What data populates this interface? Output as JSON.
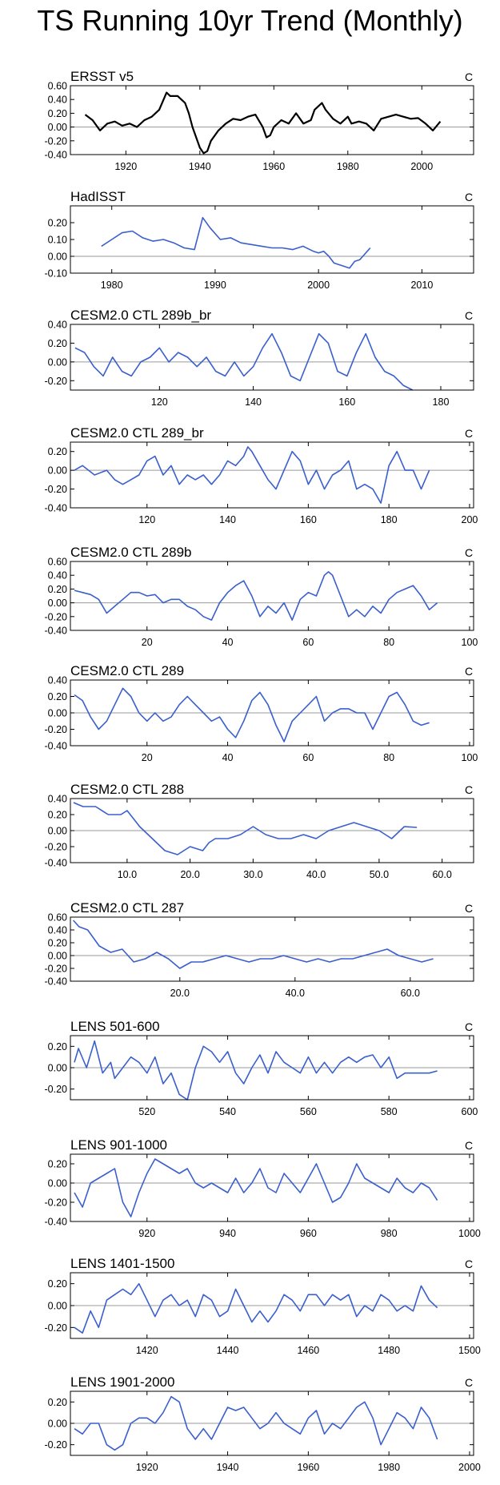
{
  "page": {
    "title": "TS Running 10yr Trend (Monthly)"
  },
  "chart_data": [
    {
      "type": "line",
      "title": "ERSST v5",
      "unit": "C",
      "color": "#000000",
      "xlim": [
        1905,
        2014
      ],
      "ylim": [
        -0.4,
        0.6
      ],
      "xticks": [
        1920,
        1940,
        1960,
        1980,
        2000
      ],
      "yticks": [
        -0.4,
        -0.2,
        0.0,
        0.2,
        0.4,
        0.6
      ],
      "ydec": 2,
      "x": [
        1909,
        1911,
        1913,
        1915,
        1917,
        1919,
        1921,
        1923,
        1925,
        1927,
        1929,
        1931,
        1932,
        1934,
        1936,
        1937,
        1938,
        1939,
        1940,
        1941,
        1942,
        1943,
        1945,
        1947,
        1949,
        1951,
        1953,
        1955,
        1957,
        1958,
        1959,
        1960,
        1962,
        1964,
        1966,
        1968,
        1970,
        1971,
        1973,
        1974,
        1976,
        1978,
        1980,
        1981,
        1983,
        1985,
        1987,
        1989,
        1991,
        1993,
        1995,
        1997,
        1999,
        2001,
        2003,
        2005
      ],
      "y": [
        0.18,
        0.1,
        -0.05,
        0.05,
        0.08,
        0.02,
        0.05,
        0.0,
        0.1,
        0.15,
        0.25,
        0.5,
        0.45,
        0.45,
        0.35,
        0.2,
        0.0,
        -0.15,
        -0.3,
        -0.38,
        -0.35,
        -0.2,
        -0.05,
        0.05,
        0.12,
        0.1,
        0.15,
        0.18,
        0.0,
        -0.15,
        -0.12,
        0.0,
        0.1,
        0.05,
        0.2,
        0.05,
        0.1,
        0.25,
        0.35,
        0.25,
        0.12,
        0.05,
        0.15,
        0.05,
        0.08,
        0.05,
        -0.05,
        0.12,
        0.15,
        0.18,
        0.15,
        0.12,
        0.13,
        0.05,
        -0.05,
        0.08
      ]
    },
    {
      "type": "line",
      "title": "HadISST",
      "unit": "C",
      "color": "#3a5fcd",
      "xlim": [
        1976,
        2015
      ],
      "ylim": [
        -0.1,
        0.3
      ],
      "xticks": [
        1980,
        1990,
        2000,
        2010
      ],
      "yticks": [
        -0.1,
        0.0,
        0.1,
        0.2
      ],
      "ydec": 2,
      "x": [
        1979,
        1980,
        1981,
        1982,
        1983,
        1984,
        1985,
        1986,
        1987,
        1988,
        1988.8,
        1989.5,
        1990.5,
        1991.5,
        1992.5,
        1993.5,
        1994.5,
        1995.5,
        1996.5,
        1997.5,
        1998.5,
        1999.5,
        2000,
        2000.5,
        2001,
        2001.5,
        2002,
        2002.5,
        2003,
        2003.5,
        2004,
        2005
      ],
      "y": [
        0.06,
        0.1,
        0.14,
        0.15,
        0.11,
        0.09,
        0.1,
        0.08,
        0.05,
        0.04,
        0.23,
        0.17,
        0.1,
        0.11,
        0.08,
        0.07,
        0.06,
        0.05,
        0.05,
        0.04,
        0.06,
        0.03,
        0.02,
        0.03,
        0.0,
        -0.04,
        -0.05,
        -0.06,
        -0.07,
        -0.03,
        -0.02,
        0.05
      ]
    },
    {
      "type": "line",
      "title": "CESM2.0 CTL 289b_br",
      "unit": "C",
      "color": "#3a5fcd",
      "xlim": [
        101,
        187
      ],
      "ylim": [
        -0.3,
        0.4
      ],
      "xticks": [
        120,
        140,
        160,
        180
      ],
      "yticks": [
        -0.2,
        0.0,
        0.2,
        0.4
      ],
      "ydec": 2,
      "x": [
        102,
        104,
        106,
        108,
        110,
        112,
        114,
        116,
        118,
        120,
        122,
        124,
        126,
        128,
        130,
        132,
        134,
        136,
        138,
        140,
        142,
        144,
        146,
        148,
        150,
        152,
        154,
        156,
        158,
        160,
        162,
        164,
        166,
        168,
        170,
        172,
        174
      ],
      "y": [
        0.15,
        0.1,
        -0.05,
        -0.15,
        0.05,
        -0.1,
        -0.15,
        0.0,
        0.05,
        0.15,
        0.0,
        0.1,
        0.05,
        -0.05,
        0.05,
        -0.1,
        -0.15,
        0.0,
        -0.15,
        -0.05,
        0.15,
        0.3,
        0.1,
        -0.15,
        -0.2,
        0.05,
        0.3,
        0.2,
        -0.1,
        -0.15,
        0.1,
        0.3,
        0.05,
        -0.1,
        -0.15,
        -0.25,
        -0.3
      ]
    },
    {
      "type": "line",
      "title": "CESM2.0 CTL 289_br",
      "unit": "C",
      "color": "#3a5fcd",
      "xlim": [
        101,
        201
      ],
      "ylim": [
        -0.4,
        0.3
      ],
      "xticks": [
        120,
        140,
        160,
        180,
        200
      ],
      "yticks": [
        -0.4,
        -0.2,
        0.0,
        0.2
      ],
      "ydec": 2,
      "x": [
        102,
        104,
        107,
        110,
        112,
        114,
        116,
        118,
        120,
        122,
        124,
        126,
        128,
        130,
        132,
        134,
        136,
        138,
        140,
        142,
        143,
        144,
        145,
        146,
        148,
        150,
        152,
        154,
        156,
        158,
        160,
        162,
        164,
        166,
        168,
        170,
        172,
        174,
        176,
        178,
        180,
        182,
        184,
        186,
        188,
        190
      ],
      "y": [
        0.0,
        0.05,
        -0.05,
        0.0,
        -0.1,
        -0.15,
        -0.1,
        -0.05,
        0.1,
        0.15,
        -0.05,
        0.05,
        -0.15,
        -0.05,
        -0.1,
        -0.05,
        -0.15,
        -0.05,
        0.1,
        0.05,
        0.1,
        0.15,
        0.25,
        0.2,
        0.05,
        -0.1,
        -0.2,
        0.0,
        0.2,
        0.1,
        -0.15,
        0.0,
        -0.2,
        -0.05,
        0.0,
        0.1,
        -0.2,
        -0.15,
        -0.2,
        -0.35,
        0.05,
        0.2,
        0.0,
        0.0,
        -0.2,
        0.0
      ]
    },
    {
      "type": "line",
      "title": "CESM2.0 CTL 289b",
      "unit": "C",
      "color": "#3a5fcd",
      "xlim": [
        1,
        101
      ],
      "ylim": [
        -0.4,
        0.6
      ],
      "xticks": [
        20,
        40,
        60,
        80,
        100
      ],
      "yticks": [
        -0.4,
        -0.2,
        0.0,
        0.2,
        0.4,
        0.6
      ],
      "ydec": 2,
      "x": [
        2,
        4,
        6,
        8,
        10,
        12,
        14,
        16,
        18,
        20,
        22,
        24,
        26,
        28,
        30,
        32,
        34,
        36,
        38,
        40,
        42,
        44,
        46,
        48,
        50,
        52,
        54,
        56,
        58,
        60,
        62,
        64,
        65,
        66,
        68,
        70,
        72,
        74,
        76,
        78,
        80,
        82,
        84,
        86,
        88,
        90,
        92
      ],
      "y": [
        0.18,
        0.15,
        0.12,
        0.05,
        -0.15,
        -0.05,
        0.05,
        0.15,
        0.15,
        0.1,
        0.12,
        0.0,
        0.05,
        0.05,
        -0.05,
        -0.1,
        -0.2,
        -0.25,
        0.0,
        0.15,
        0.25,
        0.32,
        0.1,
        -0.2,
        -0.05,
        -0.15,
        0.0,
        -0.25,
        0.05,
        0.15,
        0.1,
        0.4,
        0.45,
        0.4,
        0.1,
        -0.2,
        -0.1,
        -0.2,
        -0.05,
        -0.15,
        0.05,
        0.15,
        0.2,
        0.25,
        0.1,
        -0.1,
        0.0
      ]
    },
    {
      "type": "line",
      "title": "CESM2.0 CTL 289",
      "unit": "C",
      "color": "#3a5fcd",
      "xlim": [
        1,
        101
      ],
      "ylim": [
        -0.4,
        0.4
      ],
      "xticks": [
        20,
        40,
        60,
        80,
        100
      ],
      "yticks": [
        -0.4,
        -0.2,
        0.0,
        0.2,
        0.4
      ],
      "ydec": 2,
      "x": [
        2,
        4,
        6,
        8,
        10,
        12,
        14,
        16,
        18,
        20,
        22,
        24,
        26,
        28,
        30,
        32,
        34,
        36,
        38,
        40,
        42,
        44,
        46,
        48,
        50,
        52,
        54,
        56,
        58,
        60,
        62,
        64,
        66,
        68,
        70,
        72,
        74,
        76,
        78,
        80,
        82,
        84,
        86,
        88,
        90
      ],
      "y": [
        0.22,
        0.15,
        -0.05,
        -0.2,
        -0.1,
        0.1,
        0.3,
        0.2,
        0.0,
        -0.1,
        0.0,
        -0.1,
        -0.05,
        0.1,
        0.2,
        0.1,
        0.0,
        -0.1,
        -0.05,
        -0.2,
        -0.3,
        -0.1,
        0.15,
        0.25,
        0.1,
        -0.15,
        -0.35,
        -0.1,
        0.0,
        0.1,
        0.2,
        -0.1,
        0.0,
        0.05,
        0.05,
        0.0,
        0.0,
        -0.2,
        0.0,
        0.2,
        0.25,
        0.1,
        -0.1,
        -0.15,
        -0.12
      ]
    },
    {
      "type": "line",
      "title": "CESM2.0 CTL 288",
      "unit": "C",
      "color": "#3a5fcd",
      "xlim": [
        1,
        65
      ],
      "ylim": [
        -0.4,
        0.4
      ],
      "xticks": [
        10,
        20,
        30,
        40,
        50,
        60
      ],
      "yticks": [
        -0.4,
        -0.2,
        0.0,
        0.2,
        0.4
      ],
      "ydec": 2,
      "xdec": 1,
      "x": [
        1.5,
        3,
        5,
        7,
        9,
        10,
        12,
        14,
        16,
        18,
        19,
        20,
        22,
        23,
        24,
        26,
        28,
        30,
        32,
        34,
        36,
        38,
        40,
        42,
        44,
        46,
        48,
        50,
        52,
        54,
        56
      ],
      "y": [
        0.35,
        0.3,
        0.3,
        0.2,
        0.2,
        0.25,
        0.05,
        -0.1,
        -0.25,
        -0.3,
        -0.25,
        -0.2,
        -0.25,
        -0.15,
        -0.1,
        -0.1,
        -0.05,
        0.05,
        -0.05,
        -0.1,
        -0.1,
        -0.05,
        -0.1,
        0.0,
        0.05,
        0.1,
        0.05,
        0.0,
        -0.1,
        0.05,
        0.04
      ]
    },
    {
      "type": "line",
      "title": "CESM2.0 CTL 287",
      "unit": "C",
      "color": "#3a5fcd",
      "xlim": [
        1,
        71
      ],
      "ylim": [
        -0.4,
        0.6
      ],
      "xticks": [
        20,
        40,
        60
      ],
      "yticks": [
        -0.4,
        -0.2,
        0.0,
        0.2,
        0.4,
        0.6
      ],
      "ydec": 2,
      "xdec": 1,
      "x": [
        1.5,
        2.5,
        4,
        6,
        8,
        10,
        12,
        14,
        16,
        18,
        20,
        22,
        24,
        26,
        28,
        30,
        32,
        34,
        36,
        38,
        40,
        42,
        44,
        46,
        48,
        50,
        52,
        54,
        56,
        58,
        60,
        62,
        64
      ],
      "y": [
        0.55,
        0.45,
        0.4,
        0.15,
        0.05,
        0.1,
        -0.1,
        -0.05,
        0.05,
        -0.05,
        -0.2,
        -0.1,
        -0.1,
        -0.05,
        0.0,
        -0.05,
        -0.1,
        -0.05,
        -0.05,
        0.0,
        -0.05,
        -0.1,
        -0.05,
        -0.1,
        -0.05,
        -0.05,
        0.0,
        0.05,
        0.1,
        0.0,
        -0.05,
        -0.1,
        -0.05
      ]
    },
    {
      "type": "line",
      "title": "LENS 501-600",
      "unit": "C",
      "color": "#3a5fcd",
      "xlim": [
        501,
        601
      ],
      "ylim": [
        -0.3,
        0.3
      ],
      "xticks": [
        520,
        540,
        560,
        580,
        600
      ],
      "yticks": [
        -0.2,
        0.0,
        0.2
      ],
      "ydec": 2,
      "x": [
        502,
        503,
        505,
        507,
        509,
        511,
        512,
        514,
        516,
        518,
        520,
        522,
        524,
        526,
        528,
        530,
        532,
        534,
        536,
        538,
        540,
        542,
        544,
        546,
        548,
        550,
        552,
        554,
        556,
        558,
        560,
        562,
        564,
        566,
        568,
        570,
        572,
        574,
        576,
        578,
        580,
        582,
        584,
        586,
        588,
        590,
        592
      ],
      "y": [
        0.05,
        0.18,
        0.0,
        0.25,
        -0.05,
        0.05,
        -0.1,
        0.0,
        0.1,
        0.05,
        -0.05,
        0.1,
        -0.15,
        -0.05,
        -0.25,
        -0.3,
        0.0,
        0.2,
        0.15,
        0.05,
        0.15,
        -0.05,
        -0.15,
        0.0,
        0.12,
        -0.05,
        0.15,
        0.05,
        0.0,
        -0.05,
        0.1,
        -0.05,
        0.05,
        -0.05,
        0.05,
        0.1,
        0.05,
        0.1,
        0.12,
        0.0,
        0.1,
        -0.1,
        -0.05,
        -0.05,
        -0.05,
        -0.05,
        -0.03
      ]
    },
    {
      "type": "line",
      "title": "LENS 901-1000",
      "unit": "C",
      "color": "#3a5fcd",
      "xlim": [
        901,
        1001
      ],
      "ylim": [
        -0.4,
        0.3
      ],
      "xticks": [
        920,
        940,
        960,
        980,
        1000
      ],
      "yticks": [
        -0.4,
        -0.2,
        0.0,
        0.2
      ],
      "ydec": 2,
      "x": [
        902,
        904,
        906,
        908,
        910,
        912,
        914,
        916,
        918,
        920,
        922,
        924,
        926,
        928,
        930,
        932,
        934,
        936,
        938,
        940,
        942,
        944,
        946,
        948,
        950,
        952,
        954,
        956,
        958,
        960,
        962,
        964,
        966,
        968,
        970,
        972,
        974,
        976,
        978,
        980,
        982,
        984,
        986,
        988,
        990,
        992
      ],
      "y": [
        -0.1,
        -0.25,
        0.0,
        0.05,
        0.1,
        0.15,
        -0.2,
        -0.35,
        -0.1,
        0.1,
        0.25,
        0.2,
        0.15,
        0.1,
        0.15,
        0.0,
        -0.05,
        0.0,
        -0.05,
        -0.1,
        0.05,
        -0.1,
        0.0,
        0.15,
        -0.05,
        -0.1,
        0.1,
        0.0,
        -0.1,
        0.05,
        0.2,
        0.0,
        -0.2,
        -0.15,
        0.0,
        0.2,
        0.05,
        0.0,
        -0.05,
        -0.1,
        0.05,
        -0.05,
        -0.1,
        0.0,
        -0.05,
        -0.18
      ]
    },
    {
      "type": "line",
      "title": "LENS 1401-1500",
      "unit": "C",
      "color": "#3a5fcd",
      "xlim": [
        1401,
        1501
      ],
      "ylim": [
        -0.3,
        0.3
      ],
      "xticks": [
        1420,
        1440,
        1460,
        1480,
        1500
      ],
      "yticks": [
        -0.2,
        0.0,
        0.2
      ],
      "ydec": 2,
      "x": [
        1402,
        1404,
        1406,
        1408,
        1410,
        1412,
        1414,
        1416,
        1418,
        1420,
        1422,
        1424,
        1426,
        1428,
        1430,
        1432,
        1434,
        1436,
        1438,
        1440,
        1442,
        1444,
        1446,
        1448,
        1450,
        1452,
        1454,
        1456,
        1458,
        1460,
        1462,
        1464,
        1466,
        1468,
        1470,
        1472,
        1474,
        1476,
        1478,
        1480,
        1482,
        1484,
        1486,
        1488,
        1490,
        1492
      ],
      "y": [
        -0.2,
        -0.25,
        -0.05,
        -0.2,
        0.05,
        0.1,
        0.15,
        0.1,
        0.2,
        0.05,
        -0.1,
        0.05,
        0.1,
        0.0,
        0.05,
        -0.1,
        0.1,
        0.05,
        -0.1,
        -0.05,
        0.15,
        0.0,
        -0.15,
        -0.05,
        -0.15,
        -0.05,
        0.1,
        0.05,
        -0.05,
        0.1,
        0.1,
        0.0,
        0.1,
        0.05,
        0.1,
        -0.1,
        0.0,
        -0.05,
        0.1,
        0.05,
        -0.05,
        0.0,
        -0.05,
        0.18,
        0.05,
        -0.02
      ]
    },
    {
      "type": "line",
      "title": "LENS 1901-2000",
      "unit": "C",
      "color": "#3a5fcd",
      "xlim": [
        1901,
        2001
      ],
      "ylim": [
        -0.3,
        0.3
      ],
      "xticks": [
        1920,
        1940,
        1960,
        1980,
        2000
      ],
      "yticks": [
        -0.2,
        0.0,
        0.2
      ],
      "ydec": 2,
      "x": [
        1902,
        1904,
        1906,
        1908,
        1910,
        1912,
        1914,
        1916,
        1918,
        1920,
        1922,
        1924,
        1926,
        1928,
        1930,
        1932,
        1934,
        1936,
        1938,
        1940,
        1942,
        1944,
        1946,
        1948,
        1950,
        1952,
        1954,
        1956,
        1958,
        1960,
        1962,
        1964,
        1966,
        1968,
        1970,
        1972,
        1974,
        1976,
        1978,
        1980,
        1982,
        1984,
        1986,
        1988,
        1990,
        1992
      ],
      "y": [
        -0.05,
        -0.1,
        0.0,
        0.0,
        -0.2,
        -0.25,
        -0.2,
        0.0,
        0.05,
        0.05,
        0.0,
        0.1,
        0.25,
        0.2,
        -0.05,
        -0.15,
        -0.05,
        -0.15,
        0.0,
        0.15,
        0.12,
        0.15,
        0.05,
        -0.05,
        0.0,
        0.1,
        0.0,
        -0.05,
        -0.1,
        0.05,
        0.12,
        -0.1,
        0.0,
        -0.05,
        0.05,
        0.15,
        0.2,
        0.05,
        -0.2,
        -0.05,
        0.1,
        0.05,
        -0.05,
        0.15,
        0.05,
        -0.15
      ]
    }
  ]
}
